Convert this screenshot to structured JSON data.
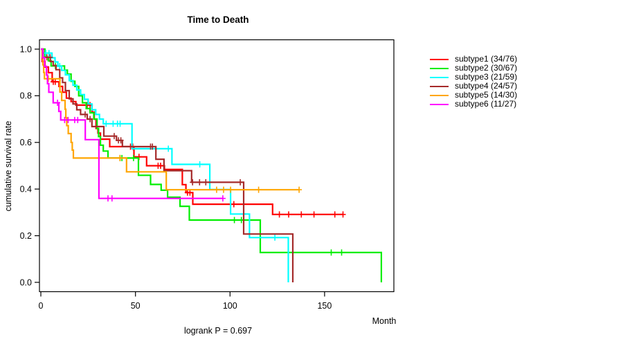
{
  "title": "Time to Death",
  "axes": {
    "xlabel": "Month",
    "ylabel": "cumulative survival rate"
  },
  "annotations": {
    "logrank": "logrank P = 0.697"
  },
  "chart_data": {
    "type": "line",
    "kind": "kaplan-meier-step",
    "title": "Time to Death",
    "xlabel": "Month",
    "ylabel": "cumulative survival rate",
    "xlim": [
      0,
      187
    ],
    "ylim": [
      0,
      1.04
    ],
    "xticks": [
      0,
      50,
      100,
      150
    ],
    "yticks": [
      0,
      0.2,
      0.4,
      0.6,
      0.8,
      1.0
    ],
    "xtick_labels": [
      "0",
      "50",
      "100",
      "150"
    ],
    "ytick_labels": [
      "0.0",
      "0.2",
      "0.4",
      "0.6",
      "0.8",
      "1.0"
    ],
    "grid": false,
    "legend_position": "right-outside",
    "series": [
      {
        "name": "subtype1",
        "legend_label": "subtype1 (34/76)",
        "color": "#FF0000",
        "end_time": 159.7,
        "steps": [
          [
            0,
            1
          ],
          [
            0.7,
            0.947
          ],
          [
            2.2,
            0.923
          ],
          [
            4,
            0.899
          ],
          [
            6,
            0.86
          ],
          [
            9.6,
            0.84
          ],
          [
            11.5,
            0.815
          ],
          [
            13.5,
            0.79
          ],
          [
            16,
            0.775
          ],
          [
            18.5,
            0.76
          ],
          [
            27,
            0.73
          ],
          [
            28.2,
            0.7
          ],
          [
            29.2,
            0.66
          ],
          [
            30.2,
            0.64
          ],
          [
            31.5,
            0.614
          ],
          [
            36.4,
            0.582
          ],
          [
            49.2,
            0.538
          ],
          [
            55.9,
            0.5
          ],
          [
            65.3,
            0.484
          ],
          [
            74.8,
            0.419
          ],
          [
            76.7,
            0.385
          ],
          [
            80.3,
            0.335
          ],
          [
            122.5,
            0.291
          ]
        ],
        "censors": [
          [
            6.6,
            0.86
          ],
          [
            7.6,
            0.86
          ],
          [
            24.5,
            0.76
          ],
          [
            26,
            0.76
          ],
          [
            47.4,
            0.582
          ],
          [
            48.6,
            0.582
          ],
          [
            51.9,
            0.538
          ],
          [
            62,
            0.5
          ],
          [
            63.3,
            0.5
          ],
          [
            77.5,
            0.385
          ],
          [
            78.8,
            0.385
          ],
          [
            102,
            0.335
          ],
          [
            126.1,
            0.291
          ],
          [
            131,
            0.291
          ],
          [
            137.7,
            0.291
          ],
          [
            144.4,
            0.291
          ],
          [
            155.4,
            0.291
          ],
          [
            159.7,
            0.291
          ]
        ]
      },
      {
        "name": "subtype2",
        "legend_label": "subtype2 (30/67)",
        "color": "#00EE00",
        "end_time": 180,
        "steps": [
          [
            0,
            1
          ],
          [
            2.2,
            0.966
          ],
          [
            4,
            0.95
          ],
          [
            5.4,
            0.928
          ],
          [
            12.5,
            0.91
          ],
          [
            14,
            0.893
          ],
          [
            16,
            0.862
          ],
          [
            18,
            0.84
          ],
          [
            20,
            0.8
          ],
          [
            22,
            0.77
          ],
          [
            24,
            0.745
          ],
          [
            26,
            0.727
          ],
          [
            28,
            0.7
          ],
          [
            29.7,
            0.66
          ],
          [
            30.5,
            0.625
          ],
          [
            31.5,
            0.588
          ],
          [
            33,
            0.563
          ],
          [
            35.5,
            0.533
          ],
          [
            51.6,
            0.459
          ],
          [
            58,
            0.42
          ],
          [
            63.6,
            0.395
          ],
          [
            67,
            0.365
          ],
          [
            73.6,
            0.326
          ],
          [
            78.5,
            0.267
          ],
          [
            116,
            0.128
          ],
          [
            180,
            0
          ]
        ],
        "censors": [
          [
            7.7,
            0.928
          ],
          [
            41.9,
            0.533
          ],
          [
            42.9,
            0.533
          ],
          [
            49,
            0.533
          ],
          [
            102.3,
            0.267
          ],
          [
            106,
            0.267
          ],
          [
            153.5,
            0.128
          ],
          [
            159,
            0.128
          ]
        ]
      },
      {
        "name": "subtype3",
        "legend_label": "subtype3 (21/59)",
        "color": "#00FFFF",
        "end_time": 130.8,
        "steps": [
          [
            0,
            1
          ],
          [
            1,
            0.983
          ],
          [
            5.9,
            0.963
          ],
          [
            7.5,
            0.945
          ],
          [
            9,
            0.927
          ],
          [
            11,
            0.909
          ],
          [
            13,
            0.89
          ],
          [
            15,
            0.865
          ],
          [
            17,
            0.845
          ],
          [
            19,
            0.825
          ],
          [
            21,
            0.805
          ],
          [
            23,
            0.785
          ],
          [
            25,
            0.765
          ],
          [
            27,
            0.74
          ],
          [
            29,
            0.72
          ],
          [
            31,
            0.7
          ],
          [
            33,
            0.68
          ],
          [
            48.2,
            0.573
          ],
          [
            69.3,
            0.506
          ],
          [
            89.3,
            0.398
          ],
          [
            100.3,
            0.293
          ],
          [
            110.3,
            0.192
          ],
          [
            130.8,
            0
          ]
        ],
        "censors": [
          [
            2.6,
            0.983
          ],
          [
            4.3,
            0.983
          ],
          [
            10,
            0.927
          ],
          [
            34.5,
            0.68
          ],
          [
            38.2,
            0.68
          ],
          [
            40.5,
            0.68
          ],
          [
            41.9,
            0.68
          ],
          [
            67.4,
            0.573
          ],
          [
            84,
            0.506
          ],
          [
            123.7,
            0.192
          ]
        ]
      },
      {
        "name": "subtype4",
        "legend_label": "subtype4 (24/57)",
        "color": "#A52A2A",
        "end_time": 133.2,
        "steps": [
          [
            0,
            1
          ],
          [
            1.2,
            0.965
          ],
          [
            5,
            0.947
          ],
          [
            6.5,
            0.93
          ],
          [
            8,
            0.912
          ],
          [
            10,
            0.877
          ],
          [
            11.5,
            0.857
          ],
          [
            13,
            0.822
          ],
          [
            15,
            0.787
          ],
          [
            17,
            0.765
          ],
          [
            19,
            0.74
          ],
          [
            21,
            0.72
          ],
          [
            24.5,
            0.7
          ],
          [
            27,
            0.668
          ],
          [
            33.3,
            0.627
          ],
          [
            40,
            0.609
          ],
          [
            43.1,
            0.582
          ],
          [
            60.8,
            0.528
          ],
          [
            65.1,
            0.479
          ],
          [
            79.7,
            0.429
          ],
          [
            107.2,
            0.207
          ],
          [
            133.2,
            0
          ]
        ],
        "censors": [
          [
            3.2,
            0.965
          ],
          [
            4.9,
            0.965
          ],
          [
            23.4,
            0.72
          ],
          [
            26,
            0.7
          ],
          [
            38.8,
            0.627
          ],
          [
            41,
            0.609
          ],
          [
            42.3,
            0.609
          ],
          [
            58,
            0.582
          ],
          [
            59,
            0.582
          ],
          [
            80.2,
            0.429
          ],
          [
            83.9,
            0.429
          ],
          [
            87.2,
            0.429
          ],
          [
            105.4,
            0.429
          ]
        ]
      },
      {
        "name": "subtype5",
        "legend_label": "subtype5 (14/30)",
        "color": "#FFA500",
        "end_time": 136.5,
        "steps": [
          [
            0,
            1
          ],
          [
            0.7,
            0.967
          ],
          [
            1.1,
            0.933
          ],
          [
            1.5,
            0.9
          ],
          [
            1.9,
            0.873
          ],
          [
            10.1,
            0.816
          ],
          [
            11,
            0.78
          ],
          [
            12.8,
            0.742
          ],
          [
            13.2,
            0.706
          ],
          [
            13.7,
            0.672
          ],
          [
            14.5,
            0.638
          ],
          [
            16,
            0.6
          ],
          [
            16.6,
            0.567
          ],
          [
            17.2,
            0.533
          ],
          [
            45.3,
            0.474
          ],
          [
            66.3,
            0.397
          ]
        ],
        "censors": [
          [
            4,
            0.873
          ],
          [
            30.7,
            0.533
          ],
          [
            41.8,
            0.533
          ],
          [
            92.9,
            0.397
          ],
          [
            96.6,
            0.397
          ],
          [
            100.3,
            0.397
          ],
          [
            115.1,
            0.397
          ],
          [
            136.5,
            0.397
          ]
        ]
      },
      {
        "name": "subtype6",
        "legend_label": "subtype6 (11/27)",
        "color": "#FF00FF",
        "end_time": 96.2,
        "steps": [
          [
            0,
            1
          ],
          [
            1,
            0.963
          ],
          [
            2,
            0.926
          ],
          [
            3,
            0.889
          ],
          [
            3.5,
            0.852
          ],
          [
            4.2,
            0.815
          ],
          [
            6.5,
            0.77
          ],
          [
            9.5,
            0.733
          ],
          [
            10.5,
            0.696
          ],
          [
            23.5,
            0.612
          ],
          [
            30.7,
            0.36
          ]
        ],
        "censors": [
          [
            8.8,
            0.77
          ],
          [
            12.6,
            0.696
          ],
          [
            14.4,
            0.696
          ],
          [
            17.9,
            0.696
          ],
          [
            19.5,
            0.696
          ],
          [
            35.5,
            0.36
          ],
          [
            37.6,
            0.36
          ],
          [
            96.2,
            0.36
          ]
        ]
      }
    ]
  }
}
